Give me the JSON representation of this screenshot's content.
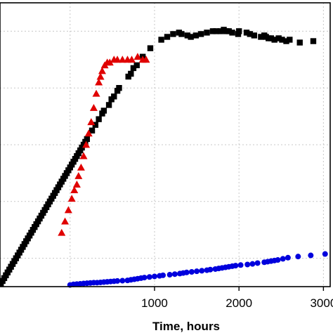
{
  "chart_data": {
    "type": "scatter",
    "title": "",
    "xlabel": "Time, hours",
    "ylabel": "",
    "xlim": [
      -830,
      3080
    ],
    "ylim": [
      0,
      1
    ],
    "x_ticks": [
      1000,
      2000,
      3000
    ],
    "x_tick_labels": [
      "1000",
      "2000",
      "3000"
    ],
    "y_tick_labels": [],
    "grid": true,
    "legend": "none",
    "series": [
      {
        "marker": "square",
        "color": "#000000",
        "x": [
          -820,
          -800,
          -780,
          -760,
          -740,
          -720,
          -700,
          -680,
          -660,
          -640,
          -620,
          -600,
          -580,
          -560,
          -540,
          -520,
          -500,
          -480,
          -460,
          -440,
          -420,
          -400,
          -380,
          -360,
          -340,
          -320,
          -300,
          -280,
          -260,
          -240,
          -220,
          -200,
          -180,
          -160,
          -140,
          -120,
          -100,
          -80,
          -60,
          -40,
          -20,
          0,
          20,
          40,
          60,
          80,
          100,
          120,
          140,
          160,
          180,
          200,
          260,
          300,
          340,
          380,
          400,
          460,
          490,
          520,
          560,
          580,
          690,
          720,
          750,
          790,
          860,
          950,
          1080,
          1150,
          1220,
          1290,
          1320,
          1390,
          1430,
          1490,
          1550,
          1620,
          1690,
          1730,
          1780,
          1820,
          1850,
          1880,
          1920,
          1990,
          2000,
          2090,
          2130,
          2180,
          2260,
          2300,
          2320,
          2350,
          2380,
          2420,
          2470,
          2510,
          2560,
          2600,
          2720,
          2880
        ],
        "y": [
          0.01,
          0.02,
          0.03,
          0.04,
          0.05,
          0.06,
          0.07,
          0.08,
          0.09,
          0.1,
          0.11,
          0.12,
          0.13,
          0.14,
          0.15,
          0.16,
          0.17,
          0.18,
          0.19,
          0.2,
          0.21,
          0.22,
          0.23,
          0.24,
          0.25,
          0.26,
          0.27,
          0.28,
          0.29,
          0.3,
          0.31,
          0.32,
          0.33,
          0.34,
          0.35,
          0.36,
          0.37,
          0.38,
          0.39,
          0.4,
          0.41,
          0.42,
          0.43,
          0.44,
          0.45,
          0.46,
          0.47,
          0.48,
          0.49,
          0.5,
          0.51,
          0.52,
          0.55,
          0.57,
          0.59,
          0.61,
          0.62,
          0.64,
          0.66,
          0.67,
          0.69,
          0.7,
          0.74,
          0.75,
          0.77,
          0.78,
          0.81,
          0.84,
          0.87,
          0.88,
          0.89,
          0.895,
          0.89,
          0.885,
          0.88,
          0.885,
          0.89,
          0.895,
          0.9,
          0.9,
          0.9,
          0.905,
          0.9,
          0.9,
          0.895,
          0.89,
          0.9,
          0.895,
          0.89,
          0.885,
          0.88,
          0.885,
          0.88,
          0.875,
          0.875,
          0.87,
          0.875,
          0.87,
          0.865,
          0.87,
          0.86,
          0.865
        ]
      },
      {
        "marker": "triangle",
        "color": "#e00000",
        "x": [
          -100,
          -60,
          -20,
          20,
          50,
          80,
          100,
          130,
          160,
          190,
          220,
          250,
          280,
          310,
          340,
          360,
          380,
          410,
          440,
          470,
          520,
          560,
          620,
          680,
          730,
          800,
          860,
          900
        ],
        "y": [
          0.19,
          0.23,
          0.27,
          0.31,
          0.34,
          0.36,
          0.39,
          0.42,
          0.46,
          0.5,
          0.54,
          0.58,
          0.63,
          0.68,
          0.72,
          0.74,
          0.76,
          0.78,
          0.79,
          0.79,
          0.8,
          0.8,
          0.8,
          0.8,
          0.8,
          0.81,
          0.8,
          0.8
        ]
      },
      {
        "marker": "circle",
        "color": "#0000dd",
        "x": [
          0,
          40,
          80,
          120,
          160,
          200,
          240,
          280,
          320,
          360,
          400,
          440,
          480,
          520,
          560,
          620,
          680,
          720,
          760,
          800,
          840,
          880,
          940,
          1000,
          1060,
          1100,
          1180,
          1240,
          1300,
          1340,
          1380,
          1440,
          1500,
          1560,
          1620,
          1660,
          1720,
          1760,
          1800,
          1840,
          1880,
          1920,
          1960,
          2020,
          2100,
          2160,
          2220,
          2300,
          2340,
          2380,
          2420,
          2460,
          2520,
          2580,
          2700,
          2850,
          3020
        ],
        "y": [
          0.006,
          0.008,
          0.009,
          0.01,
          0.011,
          0.012,
          0.013,
          0.014,
          0.014,
          0.015,
          0.016,
          0.017,
          0.018,
          0.019,
          0.02,
          0.021,
          0.022,
          0.024,
          0.026,
          0.028,
          0.03,
          0.032,
          0.034,
          0.036,
          0.038,
          0.04,
          0.042,
          0.044,
          0.046,
          0.048,
          0.05,
          0.052,
          0.054,
          0.056,
          0.058,
          0.06,
          0.062,
          0.064,
          0.066,
          0.068,
          0.07,
          0.072,
          0.074,
          0.076,
          0.078,
          0.08,
          0.083,
          0.086,
          0.088,
          0.09,
          0.092,
          0.094,
          0.098,
          0.102,
          0.106,
          0.11,
          0.115
        ]
      }
    ]
  }
}
